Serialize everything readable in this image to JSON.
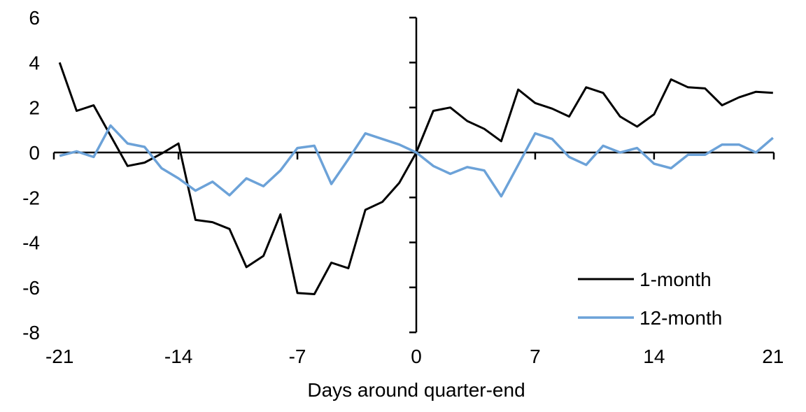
{
  "chart_data": {
    "type": "line",
    "title": "",
    "xlabel": "Days around quarter-end",
    "ylabel": "",
    "x_range": [
      -21,
      21
    ],
    "ylim": [
      -8,
      6
    ],
    "x_ticks": [
      -21,
      -14,
      -7,
      0,
      7,
      14,
      21
    ],
    "y_ticks": [
      6,
      4,
      2,
      0,
      -2,
      -4,
      -6,
      -8
    ],
    "grid": false,
    "legend_position": "lower-right",
    "axis_color": "#000000",
    "x": [
      -21,
      -20,
      -19,
      -18,
      -17,
      -16,
      -15,
      -14,
      -13,
      -12,
      -11,
      -10,
      -9,
      -8,
      -7,
      -6,
      -5,
      -4,
      -3,
      -2,
      -1,
      0,
      1,
      2,
      3,
      4,
      5,
      6,
      7,
      8,
      9,
      10,
      11,
      12,
      13,
      14,
      15,
      16,
      17,
      18,
      19,
      20,
      21
    ],
    "series": [
      {
        "name": "1-month",
        "color": "#000000",
        "values": [
          4.0,
          1.85,
          2.1,
          0.75,
          -0.6,
          -0.45,
          -0.05,
          0.4,
          -3.0,
          -3.1,
          -3.4,
          -5.1,
          -4.6,
          -2.75,
          -6.25,
          -6.3,
          -4.9,
          -5.15,
          -2.55,
          -2.2,
          -1.35,
          0,
          1.85,
          2.0,
          1.4,
          1.05,
          0.5,
          2.8,
          2.2,
          1.95,
          1.6,
          2.9,
          2.65,
          1.6,
          1.15,
          1.7,
          3.25,
          2.9,
          2.85,
          2.1,
          2.45,
          2.7,
          2.65
        ]
      },
      {
        "name": "12-month",
        "color": "#6CA2D8",
        "values": [
          -0.15,
          0.05,
          -0.2,
          1.2,
          0.4,
          0.25,
          -0.7,
          -1.15,
          -1.7,
          -1.3,
          -1.9,
          -1.15,
          -1.5,
          -0.8,
          0.2,
          0.3,
          -1.4,
          -0.3,
          0.85,
          0.6,
          0.35,
          0,
          -0.6,
          -0.95,
          -0.65,
          -0.8,
          -1.95,
          -0.55,
          0.85,
          0.6,
          -0.2,
          -0.55,
          0.3,
          0.0,
          0.2,
          -0.5,
          -0.7,
          -0.1,
          -0.1,
          0.35,
          0.35,
          0.0,
          0.65
        ]
      }
    ]
  }
}
